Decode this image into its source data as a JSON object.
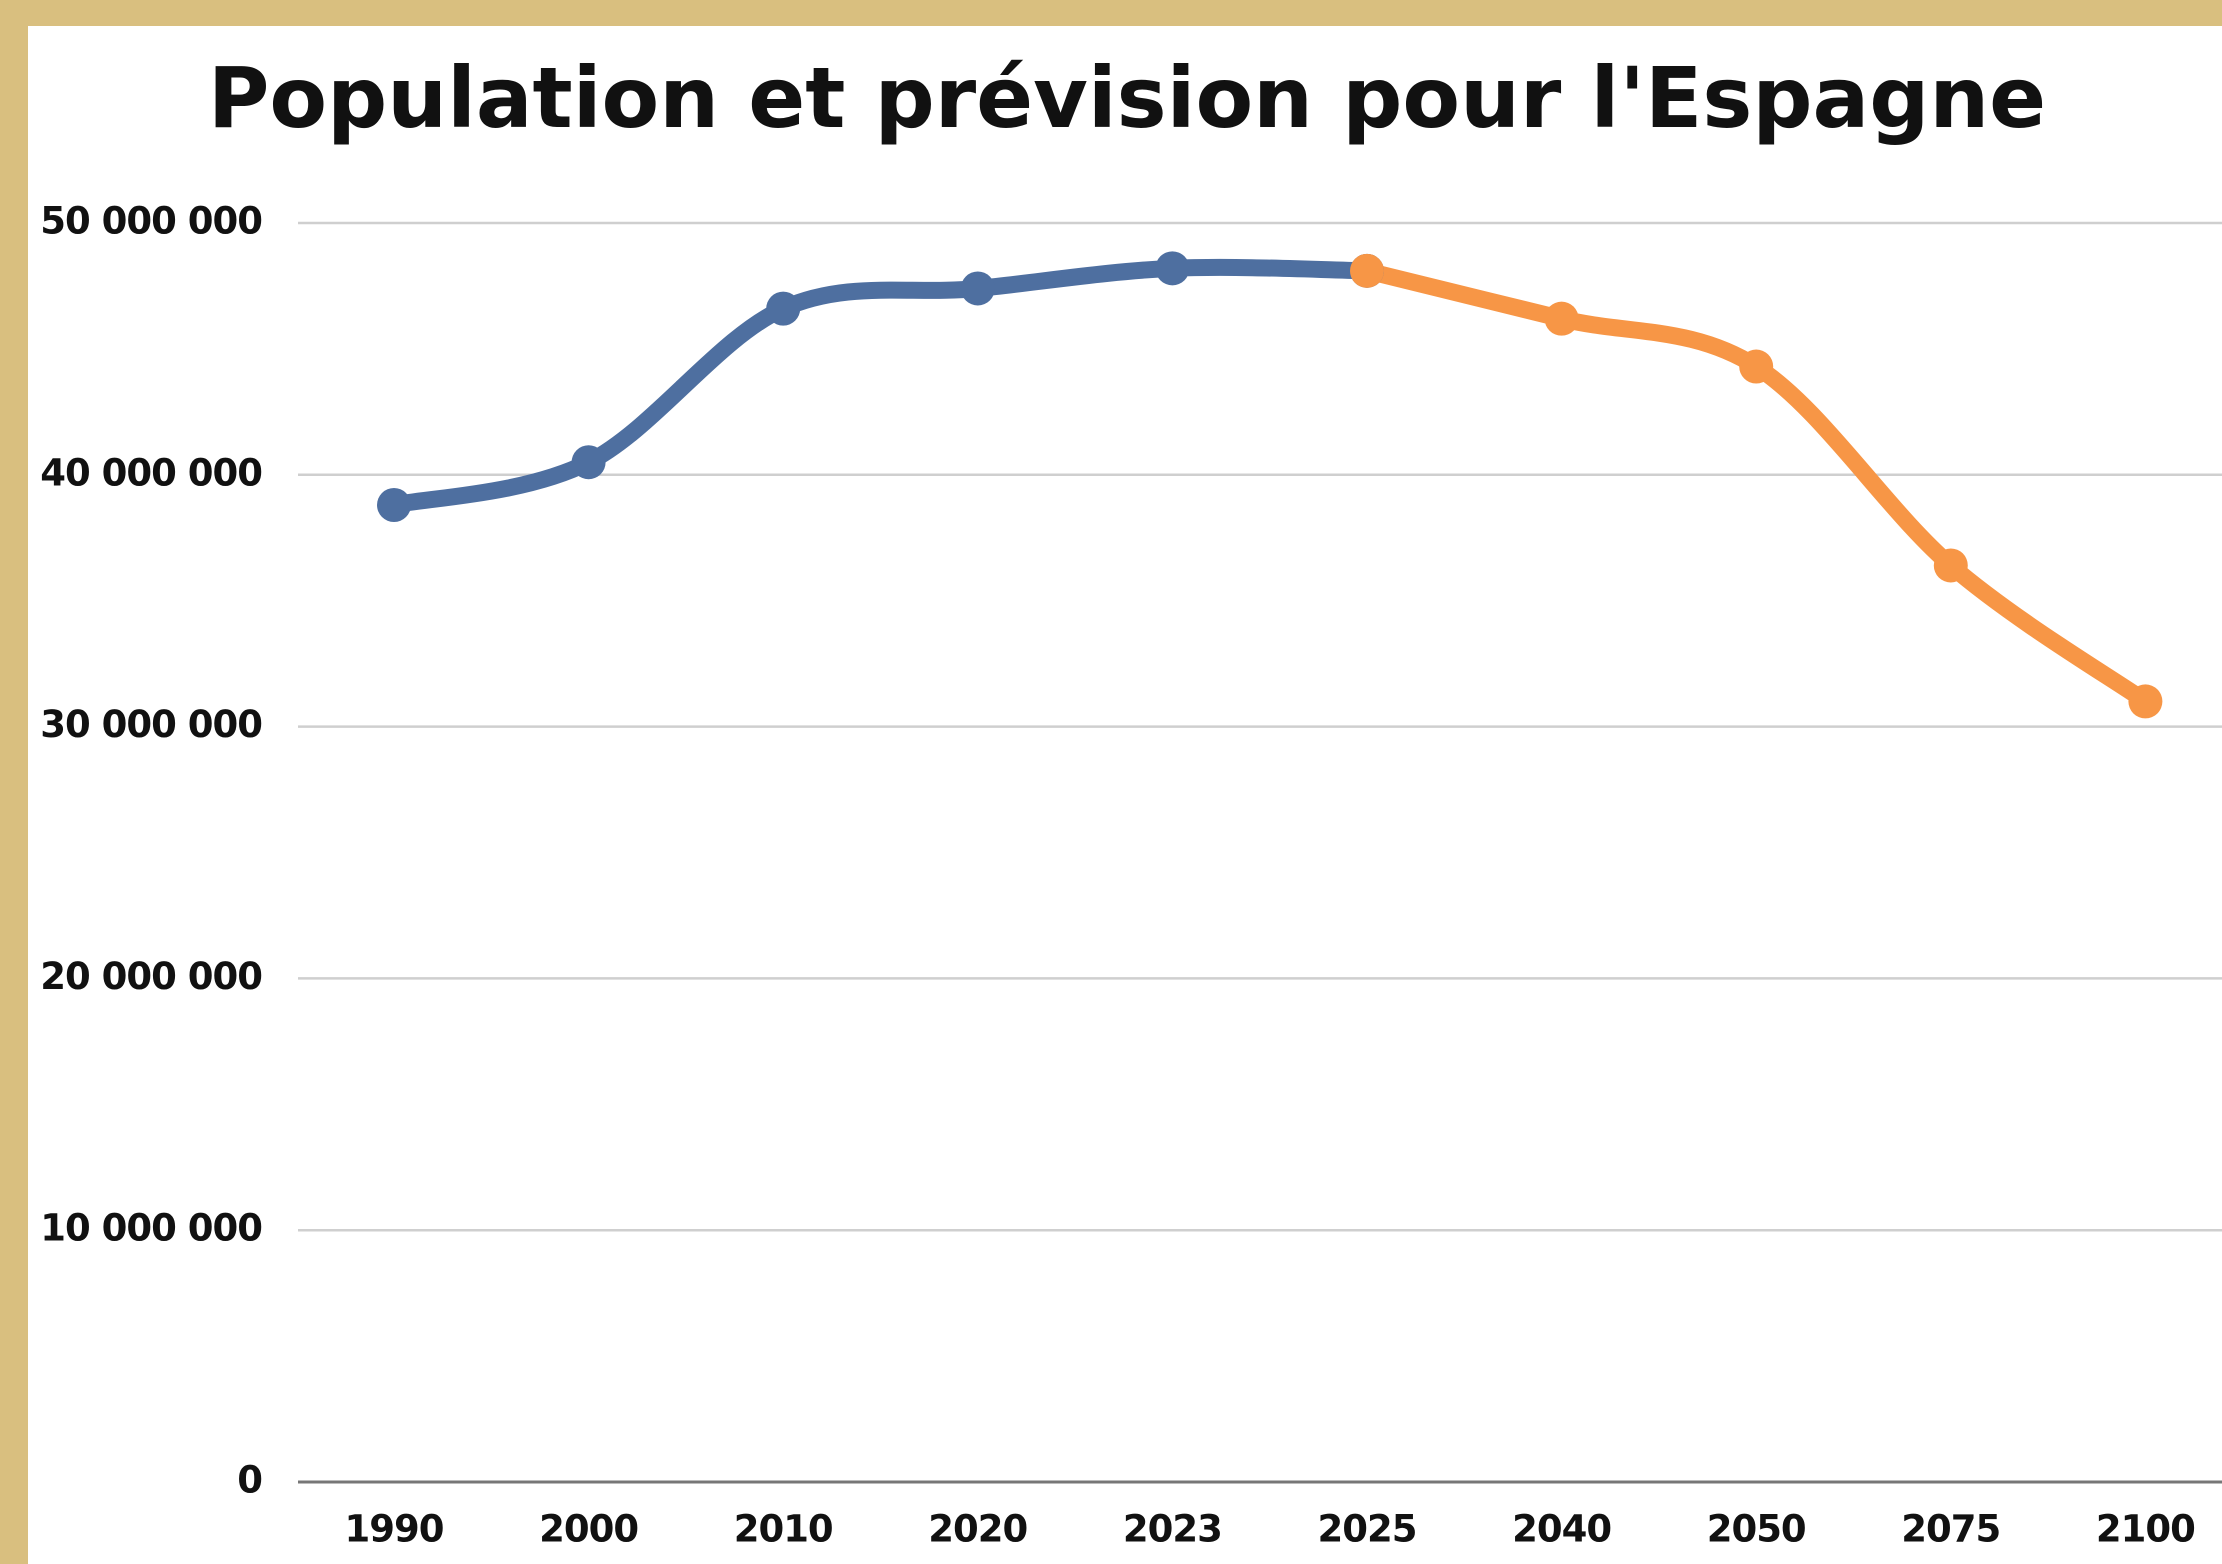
{
  "chart_data": {
    "type": "line",
    "title": "Population et prévision pour l'Espagne",
    "categories": [
      "1990",
      "2000",
      "2010",
      "2020",
      "2023",
      "2025",
      "2040",
      "2050",
      "2075",
      "2100"
    ],
    "series": [
      {
        "color": "#4e6fa0",
        "values": [
          38800000,
          40500000,
          46600000,
          47400000,
          48200000,
          48100000,
          null,
          null,
          null,
          null
        ]
      },
      {
        "color": "#f79646",
        "values": [
          null,
          null,
          null,
          null,
          null,
          48100000,
          46200000,
          44300000,
          36400000,
          31000000
        ]
      }
    ],
    "ylim": [
      0,
      50000000
    ],
    "yticks": [
      0,
      {
        "value": 10000000,
        "label": "10 000 000"
      },
      {
        "value": 20000000,
        "label": "20 000 000"
      },
      {
        "value": 30000000,
        "label": "30 000 000"
      },
      {
        "value": 40000000,
        "label": "40 000 000"
      },
      {
        "value": 50000000,
        "label": "50 000 000"
      }
    ],
    "grid": true
  }
}
